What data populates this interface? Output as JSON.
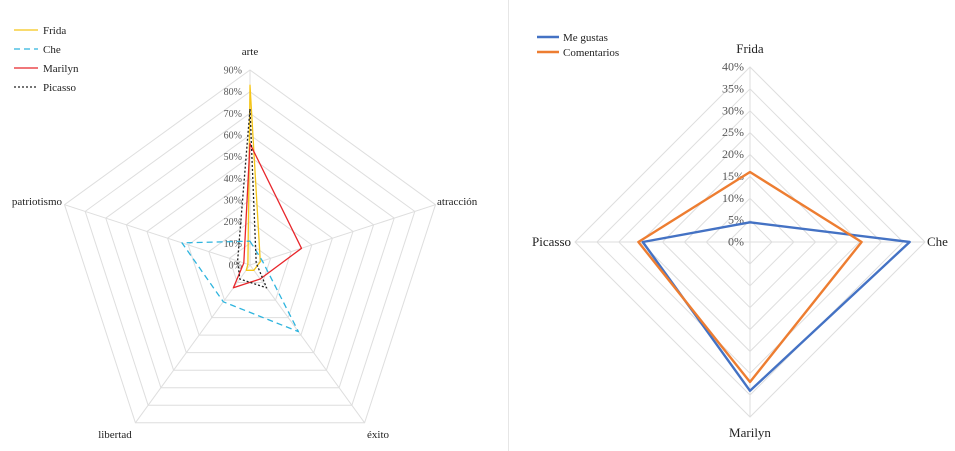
{
  "chart_data": [
    {
      "type": "radar",
      "title": "",
      "axes": [
        "arte",
        "atracción",
        "éxito",
        "libertad",
        "patriotismo"
      ],
      "ticks": [
        "0%",
        "10%",
        "20%",
        "30%",
        "40%",
        "50%",
        "60%",
        "70%",
        "80%",
        "90%"
      ],
      "rmax": 90,
      "grid": true,
      "legend_position": "top-left",
      "series": [
        {
          "name": "Frida",
          "color": "#F5C518",
          "dash": "solid",
          "values": [
            83,
            5,
            3,
            3,
            1
          ]
        },
        {
          "name": "Che",
          "color": "#2EB4DE",
          "dash": "dashed",
          "values": [
            11,
            6,
            38,
            21,
            33
          ]
        },
        {
          "name": "Marilyn",
          "color": "#E8262B",
          "dash": "solid",
          "values": [
            56,
            25,
            8,
            13,
            3
          ]
        },
        {
          "name": "Picasso",
          "color": "#222222",
          "dash": "dotted",
          "values": [
            72,
            3,
            13,
            8,
            6
          ]
        }
      ]
    },
    {
      "type": "radar",
      "title": "",
      "axes": [
        "Frida",
        "Che",
        "Marilyn",
        "Picasso"
      ],
      "ticks": [
        "0%",
        "5%",
        "10%",
        "15%",
        "20%",
        "25%",
        "30%",
        "35%",
        "40%"
      ],
      "rmax": 40,
      "grid": true,
      "legend_position": "top-left",
      "series": [
        {
          "name": "Me gustas",
          "color": "#4472C4",
          "dash": "solid",
          "values": [
            4.5,
            36.5,
            34,
            24.5
          ]
        },
        {
          "name": "Comentarios",
          "color": "#ED7D31",
          "dash": "solid",
          "values": [
            16,
            25.5,
            32,
            25.5
          ]
        }
      ]
    }
  ]
}
